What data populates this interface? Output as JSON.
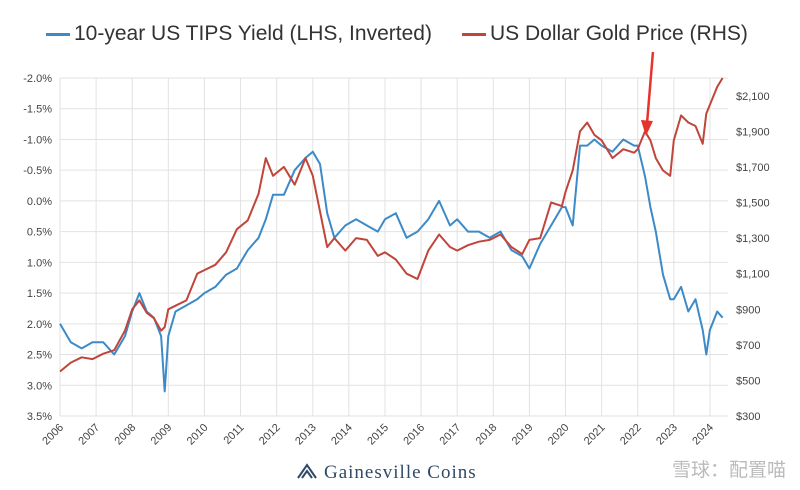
{
  "chart_data": {
    "type": "line",
    "legend_placement": "top",
    "grid": true,
    "y_left": {
      "ticks": [
        "-2.0%",
        "-1.5%",
        "-1.0%",
        "-0.5%",
        "0.0%",
        "0.5%",
        "1.0%",
        "1.5%",
        "2.0%",
        "2.5%",
        "3.0%",
        "3.5%"
      ],
      "range": [
        -2.0,
        3.5
      ],
      "inverted": true
    },
    "y_right": {
      "ticks": [
        "$2,100",
        "$1,900",
        "$1,700",
        "$1,500",
        "$1,300",
        "$1,100",
        "$900",
        "$700",
        "$500",
        "$300"
      ],
      "range": [
        300,
        2200
      ]
    },
    "x_ticks": [
      "2006",
      "2007",
      "2008",
      "2009",
      "2010",
      "2011",
      "2012",
      "2013",
      "2014",
      "2015",
      "2016",
      "2017",
      "2018",
      "2019",
      "2020",
      "2021",
      "2022",
      "2023",
      "2024"
    ],
    "xlim": [
      2006,
      2024.5
    ],
    "series": [
      {
        "name": "10-year US TIPS Yield (LHS, Inverted)",
        "color": "#3c8ac8",
        "axis": "left",
        "x": [
          2006.0,
          2006.3,
          2006.6,
          2006.9,
          2007.2,
          2007.5,
          2007.8,
          2008.0,
          2008.2,
          2008.4,
          2008.6,
          2008.8,
          2008.9,
          2009.0,
          2009.2,
          2009.5,
          2009.8,
          2010.0,
          2010.3,
          2010.6,
          2010.9,
          2011.2,
          2011.5,
          2011.7,
          2011.9,
          2012.2,
          2012.5,
          2012.8,
          2013.0,
          2013.2,
          2013.4,
          2013.6,
          2013.9,
          2014.2,
          2014.5,
          2014.8,
          2015.0,
          2015.3,
          2015.6,
          2015.9,
          2016.2,
          2016.5,
          2016.8,
          2017.0,
          2017.3,
          2017.6,
          2017.9,
          2018.2,
          2018.5,
          2018.8,
          2019.0,
          2019.3,
          2019.6,
          2019.9,
          2020.0,
          2020.2,
          2020.4,
          2020.6,
          2020.8,
          2021.0,
          2021.3,
          2021.6,
          2021.9,
          2022.0,
          2022.2,
          2022.35,
          2022.5,
          2022.7,
          2022.9,
          2023.0,
          2023.2,
          2023.4,
          2023.6,
          2023.8,
          2023.9,
          2024.0,
          2024.2,
          2024.35
        ],
        "y": [
          2.0,
          2.3,
          2.4,
          2.3,
          2.3,
          2.5,
          2.2,
          1.8,
          1.5,
          1.8,
          1.9,
          2.2,
          3.1,
          2.2,
          1.8,
          1.7,
          1.6,
          1.5,
          1.4,
          1.2,
          1.1,
          0.8,
          0.6,
          0.3,
          -0.1,
          -0.1,
          -0.5,
          -0.7,
          -0.8,
          -0.6,
          0.2,
          0.6,
          0.4,
          0.3,
          0.4,
          0.5,
          0.3,
          0.2,
          0.6,
          0.5,
          0.3,
          0.0,
          0.4,
          0.3,
          0.5,
          0.5,
          0.6,
          0.5,
          0.8,
          0.9,
          1.1,
          0.7,
          0.4,
          0.1,
          0.1,
          0.4,
          -0.9,
          -0.9,
          -1.0,
          -0.9,
          -0.8,
          -1.0,
          -0.9,
          -0.9,
          -0.4,
          0.1,
          0.5,
          1.2,
          1.6,
          1.6,
          1.4,
          1.8,
          1.6,
          2.1,
          2.5,
          2.1,
          1.8,
          1.9
        ]
      },
      {
        "name": "US Dollar Gold Price (RHS)",
        "color": "#c0453a",
        "axis": "right",
        "x": [
          2006.0,
          2006.3,
          2006.6,
          2006.9,
          2007.2,
          2007.5,
          2007.8,
          2008.0,
          2008.2,
          2008.4,
          2008.6,
          2008.8,
          2008.9,
          2009.0,
          2009.2,
          2009.5,
          2009.8,
          2010.0,
          2010.3,
          2010.6,
          2010.9,
          2011.2,
          2011.5,
          2011.7,
          2011.9,
          2012.2,
          2012.5,
          2012.8,
          2013.0,
          2013.2,
          2013.4,
          2013.6,
          2013.9,
          2014.2,
          2014.5,
          2014.8,
          2015.0,
          2015.3,
          2015.6,
          2015.9,
          2016.2,
          2016.5,
          2016.8,
          2017.0,
          2017.3,
          2017.6,
          2017.9,
          2018.2,
          2018.5,
          2018.8,
          2019.0,
          2019.3,
          2019.6,
          2019.9,
          2020.0,
          2020.2,
          2020.4,
          2020.6,
          2020.8,
          2021.0,
          2021.3,
          2021.6,
          2021.9,
          2022.0,
          2022.2,
          2022.35,
          2022.5,
          2022.7,
          2022.9,
          2023.0,
          2023.2,
          2023.4,
          2023.6,
          2023.8,
          2023.9,
          2024.0,
          2024.2,
          2024.35
        ],
        "y": [
          550,
          600,
          630,
          620,
          650,
          670,
          780,
          900,
          950,
          880,
          850,
          780,
          800,
          900,
          920,
          950,
          1100,
          1120,
          1150,
          1220,
          1350,
          1400,
          1550,
          1750,
          1650,
          1700,
          1600,
          1750,
          1650,
          1450,
          1250,
          1300,
          1230,
          1300,
          1290,
          1200,
          1220,
          1180,
          1100,
          1070,
          1230,
          1320,
          1250,
          1230,
          1260,
          1280,
          1290,
          1320,
          1250,
          1210,
          1290,
          1300,
          1500,
          1480,
          1560,
          1680,
          1900,
          1950,
          1880,
          1850,
          1750,
          1800,
          1780,
          1800,
          1900,
          1850,
          1750,
          1680,
          1650,
          1850,
          1990,
          1950,
          1930,
          1830,
          2000,
          2050,
          2150,
          2200
        ]
      }
    ]
  },
  "footer": {
    "logo_text": "Gainesville Coins"
  },
  "watermark": "雪球：配置喵",
  "annotation_arrow_color": "#e8332c"
}
